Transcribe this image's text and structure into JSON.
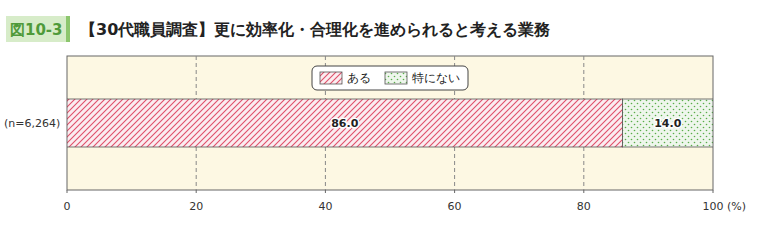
{
  "chart_data": {
    "type": "bar",
    "orientation": "horizontal",
    "stacked": true,
    "figure_label": "図10-3",
    "title": "【30代職員調査】更に効率化・合理化を進められると考える業務",
    "xlabel": "(%)",
    "categories": [
      "(n=6,264)"
    ],
    "series": [
      {
        "name": "ある",
        "color": "#e0506a",
        "values": [
          86.0
        ],
        "value_labels": [
          "86.0"
        ]
      },
      {
        "name": "特にない",
        "color": "#5aae4a",
        "values": [
          14.0
        ],
        "value_labels": [
          "14.0"
        ]
      }
    ],
    "xlim": [
      0,
      100
    ],
    "xticks": [
      0,
      20,
      40,
      60,
      80,
      100
    ],
    "grid": true,
    "legend": "top",
    "data_labels": true
  }
}
